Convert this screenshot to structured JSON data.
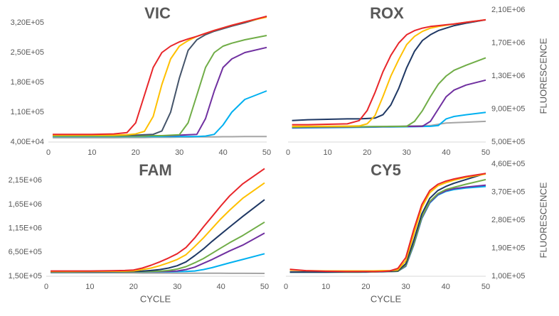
{
  "chart_data": [
    {
      "type": "line",
      "title": "VIC",
      "y_axis_side": "left",
      "x": [
        1,
        5,
        10,
        15,
        18,
        20,
        22,
        24,
        26,
        28,
        30,
        32,
        34,
        36,
        38,
        40,
        42,
        45,
        50
      ],
      "xlim": [
        0,
        50
      ],
      "xticks": [
        0,
        10,
        20,
        30,
        40,
        50
      ],
      "ylim": [
        40000,
        340000
      ],
      "yticks": [
        {
          "value": 40000,
          "label": "4,00E+04"
        },
        {
          "value": 110000,
          "label": "1,10E+05"
        },
        {
          "value": 180000,
          "label": "1,80E+05"
        },
        {
          "value": 250000,
          "label": "2,50E+05"
        },
        {
          "value": 320000,
          "label": "3,20E+05"
        }
      ],
      "series": [
        {
          "color": "#a5a5a5",
          "values": [
            50000,
            50000,
            50000,
            50000,
            50500,
            50500,
            50500,
            51000,
            51000,
            51000,
            51500,
            51500,
            52000,
            52000,
            52000,
            52500,
            52500,
            53000,
            53000
          ]
        },
        {
          "color": "#00b0f0",
          "values": [
            53000,
            53000,
            53000,
            53000,
            53000,
            53000,
            53000,
            53000,
            53000,
            53000,
            53000,
            53000,
            53000,
            54000,
            58000,
            80000,
            110000,
            140000,
            160000
          ]
        },
        {
          "color": "#7030a0",
          "values": [
            55000,
            55000,
            55000,
            55000,
            55000,
            55000,
            55000,
            55000,
            55000,
            55000,
            56000,
            57000,
            58000,
            95000,
            160000,
            215000,
            235000,
            250000,
            262000
          ]
        },
        {
          "color": "#70ad47",
          "values": [
            54000,
            54000,
            54000,
            54000,
            54000,
            54000,
            54000,
            55000,
            55000,
            56000,
            57000,
            85000,
            150000,
            215000,
            250000,
            265000,
            272000,
            280000,
            290000
          ]
        },
        {
          "color": "#44546a",
          "values": [
            56000,
            56000,
            56000,
            56000,
            56000,
            56000,
            57000,
            58000,
            66000,
            110000,
            190000,
            255000,
            280000,
            292000,
            300000,
            306000,
            312000,
            320000,
            335000
          ]
        },
        {
          "color": "#ffc000",
          "values": [
            56000,
            56000,
            56000,
            56000,
            57000,
            59000,
            65000,
            100000,
            175000,
            235000,
            265000,
            278000,
            288000,
            295000,
            302000,
            308000,
            314000,
            322000,
            333000
          ]
        },
        {
          "color": "#e8262a",
          "values": [
            58000,
            58000,
            58000,
            59000,
            62000,
            85000,
            150000,
            215000,
            250000,
            265000,
            275000,
            282000,
            288000,
            295000,
            302000,
            308000,
            314000,
            322000,
            335000
          ]
        }
      ]
    },
    {
      "type": "line",
      "title": "ROX",
      "y_axis_side": "right",
      "y_label": "FLUORESCENCE",
      "x": [
        1,
        5,
        10,
        15,
        18,
        20,
        22,
        24,
        26,
        28,
        30,
        32,
        34,
        36,
        38,
        40,
        42,
        45,
        50
      ],
      "xlim": [
        0,
        50
      ],
      "xticks": [
        0,
        10,
        20,
        30,
        40,
        50
      ],
      "ylim": [
        500000,
        2100000
      ],
      "yticks": [
        {
          "value": 500000,
          "label": "5,00E+05"
        },
        {
          "value": 900000,
          "label": "9,00E+05"
        },
        {
          "value": 1300000,
          "label": "1,30E+06"
        },
        {
          "value": 1700000,
          "label": "1,70E+06"
        },
        {
          "value": 2100000,
          "label": "2,10E+06"
        }
      ],
      "series": [
        {
          "color": "#a5a5a5",
          "values": [
            680000,
            680000,
            680000,
            682000,
            684000,
            685000,
            686000,
            688000,
            690000,
            692000,
            694000,
            696000,
            698000,
            700000,
            715000,
            730000,
            735000,
            740000,
            750000
          ]
        },
        {
          "color": "#00b0f0",
          "values": [
            670000,
            672000,
            674000,
            676000,
            678000,
            680000,
            681000,
            682000,
            683000,
            684000,
            685000,
            686000,
            688000,
            690000,
            700000,
            780000,
            810000,
            830000,
            860000
          ]
        },
        {
          "color": "#7030a0",
          "values": [
            675000,
            677000,
            679000,
            681000,
            683000,
            684000,
            685000,
            686000,
            687000,
            688000,
            689000,
            689000,
            690000,
            750000,
            900000,
            1050000,
            1130000,
            1190000,
            1250000
          ]
        },
        {
          "color": "#70ad47",
          "values": [
            680000,
            682000,
            684000,
            685000,
            686000,
            687000,
            688000,
            688000,
            689000,
            689000,
            690000,
            750000,
            880000,
            1050000,
            1200000,
            1300000,
            1370000,
            1430000,
            1520000
          ]
        },
        {
          "color": "#1f3864",
          "values": [
            760000,
            770000,
            775000,
            780000,
            780000,
            785000,
            790000,
            830000,
            950000,
            1150000,
            1400000,
            1600000,
            1730000,
            1800000,
            1850000,
            1880000,
            1910000,
            1940000,
            1980000
          ]
        },
        {
          "color": "#ffc000",
          "values": [
            690000,
            690000,
            692000,
            693000,
            695000,
            720000,
            820000,
            1050000,
            1300000,
            1500000,
            1680000,
            1780000,
            1840000,
            1880000,
            1900000,
            1915000,
            1930000,
            1950000,
            1980000
          ]
        },
        {
          "color": "#e8262a",
          "values": [
            710000,
            710000,
            715000,
            720000,
            760000,
            880000,
            1100000,
            1350000,
            1550000,
            1700000,
            1800000,
            1850000,
            1880000,
            1900000,
            1910000,
            1920000,
            1930000,
            1950000,
            1980000
          ]
        }
      ]
    },
    {
      "type": "line",
      "title": "FAM",
      "y_axis_side": "left",
      "x_label": "CYCLE",
      "x": [
        1,
        5,
        10,
        15,
        18,
        20,
        22,
        24,
        26,
        28,
        30,
        32,
        34,
        36,
        38,
        40,
        42,
        45,
        50
      ],
      "xlim": [
        0,
        50
      ],
      "xticks": [
        0,
        10,
        20,
        30,
        40,
        50
      ],
      "ylim": [
        150000,
        2450000
      ],
      "yticks": [
        {
          "value": 150000,
          "label": "1,50E+05"
        },
        {
          "value": 650000,
          "label": "6,50E+05"
        },
        {
          "value": 1150000,
          "label": "1,15E+06"
        },
        {
          "value": 1650000,
          "label": "1,65E+06"
        },
        {
          "value": 2150000,
          "label": "2,15E+06"
        }
      ],
      "series": [
        {
          "color": "#a5a5a5",
          "values": [
            220000,
            220000,
            220000,
            220000,
            218000,
            218000,
            216000,
            216000,
            215000,
            215000,
            214000,
            214000,
            213000,
            213000,
            212000,
            212000,
            211000,
            211000,
            210000
          ]
        },
        {
          "color": "#00b0f0",
          "values": [
            235000,
            236000,
            237000,
            238000,
            239000,
            240000,
            241000,
            242000,
            243000,
            244000,
            246000,
            250000,
            260000,
            290000,
            330000,
            380000,
            430000,
            500000,
            620000
          ]
        },
        {
          "color": "#7030a0",
          "values": [
            240000,
            240000,
            241000,
            242000,
            243000,
            244000,
            245000,
            246000,
            248000,
            252000,
            260000,
            290000,
            340000,
            420000,
            500000,
            590000,
            680000,
            800000,
            1050000
          ]
        },
        {
          "color": "#70ad47",
          "values": [
            240000,
            241000,
            242000,
            243000,
            244000,
            245000,
            247000,
            250000,
            256000,
            270000,
            300000,
            350000,
            430000,
            520000,
            630000,
            740000,
            850000,
            1000000,
            1280000
          ]
        },
        {
          "color": "#1f3864",
          "values": [
            245000,
            246000,
            247000,
            248000,
            250000,
            252000,
            258000,
            270000,
            290000,
            320000,
            370000,
            450000,
            580000,
            720000,
            880000,
            1030000,
            1180000,
            1400000,
            1750000
          ]
        },
        {
          "color": "#ffc000",
          "values": [
            250000,
            251000,
            252000,
            254000,
            256000,
            262000,
            290000,
            320000,
            370000,
            430000,
            500000,
            600000,
            770000,
            950000,
            1150000,
            1350000,
            1530000,
            1780000,
            2100000
          ]
        },
        {
          "color": "#e8262a",
          "values": [
            260000,
            260000,
            260000,
            265000,
            270000,
            280000,
            320000,
            380000,
            450000,
            530000,
            620000,
            750000,
            950000,
            1180000,
            1400000,
            1620000,
            1830000,
            2080000,
            2400000
          ]
        }
      ]
    },
    {
      "type": "line",
      "title": "CY5",
      "y_axis_side": "right",
      "y_label": "FLUORESCENCE",
      "x_label": "CYCLE",
      "x": [
        1,
        5,
        10,
        15,
        18,
        20,
        22,
        24,
        26,
        28,
        30,
        32,
        34,
        36,
        38,
        40,
        42,
        45,
        50
      ],
      "xlim": [
        0,
        50
      ],
      "xticks": [
        0,
        10,
        20,
        30,
        40,
        50
      ],
      "ylim": [
        100000,
        460000
      ],
      "yticks": [
        {
          "value": 100000,
          "label": "1,00E+05"
        },
        {
          "value": 190000,
          "label": "1,90E+05"
        },
        {
          "value": 280000,
          "label": "2,80E+05"
        },
        {
          "value": 370000,
          "label": "3,70E+05"
        },
        {
          "value": 460000,
          "label": "4,60E+05"
        }
      ],
      "series": [
        {
          "color": "#00b0f0",
          "values": [
            113000,
            113000,
            113000,
            113000,
            113000,
            113000,
            114000,
            114000,
            115000,
            116000,
            132000,
            200000,
            285000,
            335000,
            360000,
            372000,
            378000,
            383000,
            388000
          ]
        },
        {
          "color": "#7030a0",
          "values": [
            114000,
            114000,
            114000,
            114000,
            114000,
            114000,
            114000,
            115000,
            115000,
            116000,
            133000,
            202000,
            287000,
            337000,
            362000,
            374000,
            381000,
            386000,
            392000
          ]
        },
        {
          "color": "#70ad47",
          "values": [
            113000,
            113000,
            113000,
            113000,
            113000,
            114000,
            114000,
            115000,
            115000,
            116000,
            135000,
            205000,
            290000,
            340000,
            365000,
            378000,
            385000,
            395000,
            410000
          ]
        },
        {
          "color": "#1f3864",
          "values": [
            113000,
            113000,
            113000,
            114000,
            114000,
            114000,
            115000,
            115000,
            116000,
            117000,
            140000,
            215000,
            300000,
            350000,
            375000,
            388000,
            398000,
            410000,
            430000
          ]
        },
        {
          "color": "#ffc000",
          "values": [
            120000,
            118000,
            117000,
            117000,
            117000,
            117000,
            117000,
            118000,
            118000,
            120000,
            150000,
            235000,
            320000,
            368000,
            390000,
            400000,
            408000,
            417000,
            428000
          ]
        },
        {
          "color": "#e8262a",
          "values": [
            122000,
            118000,
            116000,
            115000,
            115000,
            115000,
            115000,
            115000,
            117000,
            125000,
            160000,
            250000,
            330000,
            375000,
            395000,
            405000,
            412000,
            420000,
            430000
          ]
        }
      ]
    }
  ]
}
